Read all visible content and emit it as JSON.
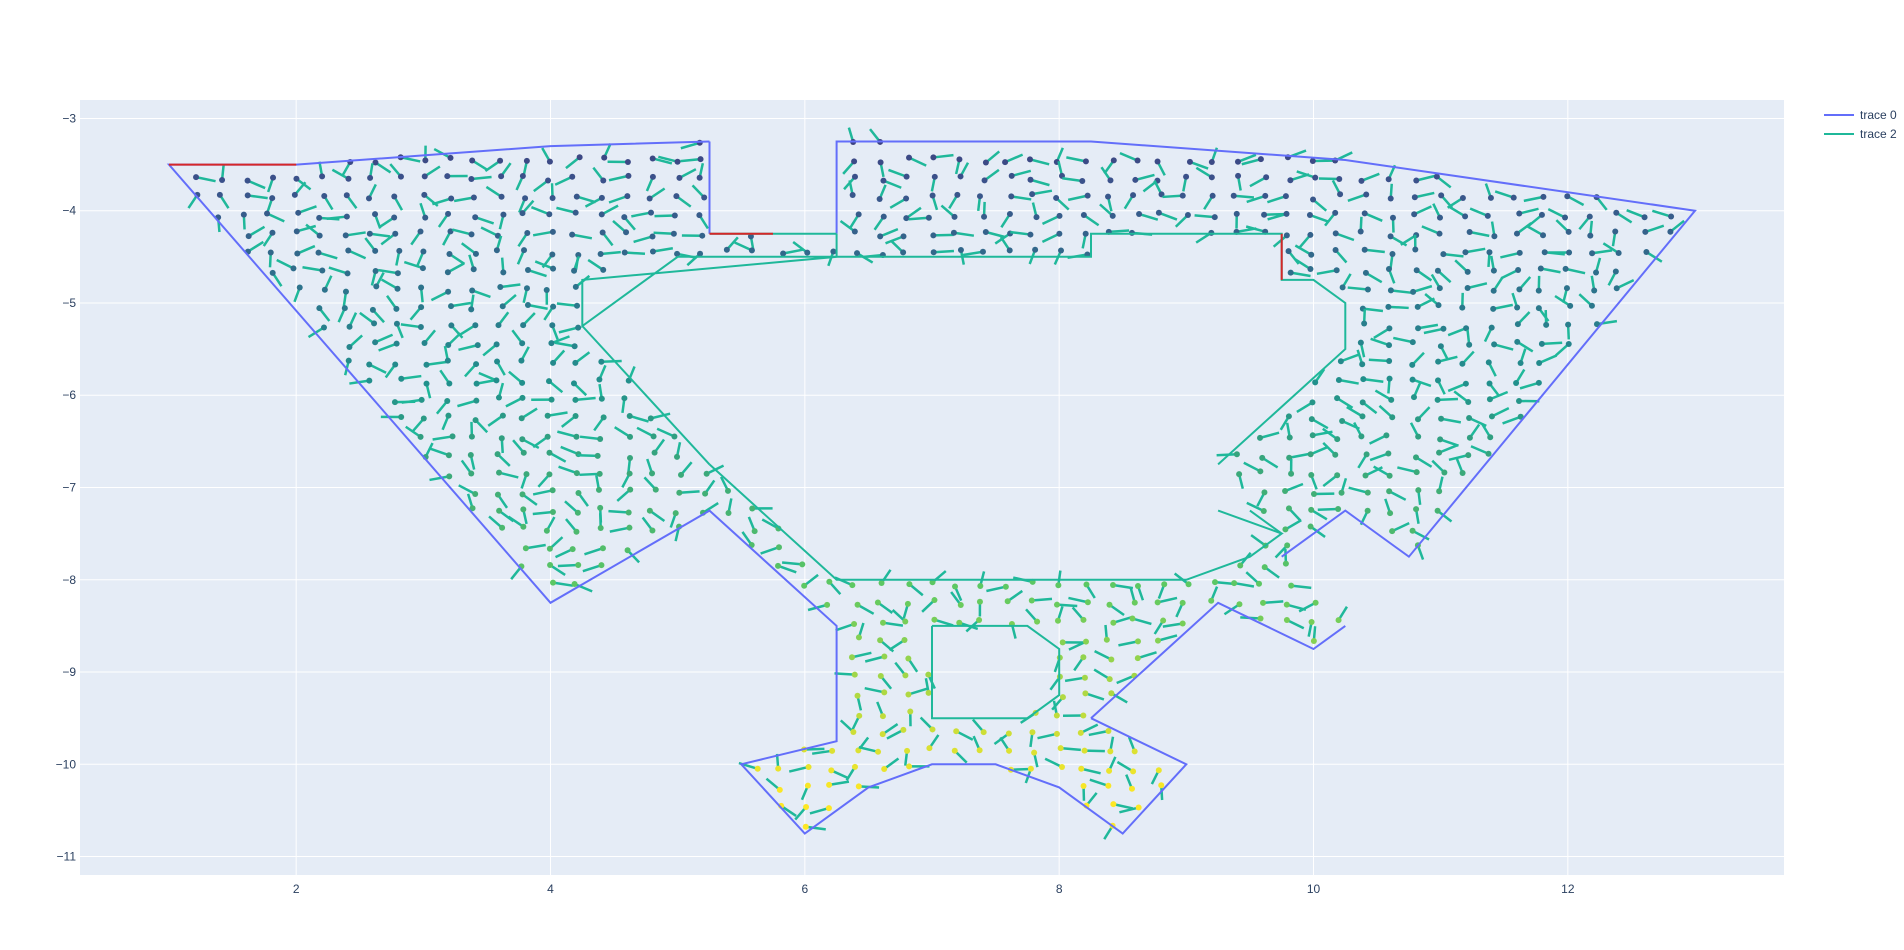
{
  "chart_data": {
    "type": "line",
    "title": "",
    "xlabel": "",
    "ylabel": "",
    "xlim": [
      0.3,
      13.7
    ],
    "ylim": [
      -11.2,
      -2.8
    ],
    "x_ticks": [
      2,
      4,
      6,
      8,
      10,
      12
    ],
    "y_ticks": [
      -3,
      -4,
      -5,
      -6,
      -7,
      -8,
      -9,
      -10,
      -11
    ],
    "grid": true,
    "legend_position": "top-right",
    "colors": {
      "plot_bg": "#e5ecf6",
      "grid": "#ffffff",
      "trace0": "#636efa",
      "trace2": "#1fb89a",
      "highlight": "#d62728",
      "colorscale": [
        "#440154",
        "#3b528b",
        "#21918c",
        "#5ec962",
        "#fde725"
      ]
    },
    "series": [
      {
        "name": "trace 0",
        "color": "#636efa",
        "segments": [
          {
            "x": [
              5.25,
              5.25
            ],
            "y": [
              -3.25,
              -4.25
            ]
          },
          {
            "x": [
              6.25,
              6.25,
              8.25,
              10.25,
              13.0,
              10.75,
              10.25,
              9.75
            ],
            "y": [
              -4.25,
              -3.25,
              -3.25,
              -3.45,
              -4.0,
              -7.75,
              -7.25,
              -7.75
            ]
          },
          {
            "x": [
              10.25,
              10.0,
              9.25,
              8.25
            ],
            "y": [
              -8.5,
              -8.75,
              -8.25,
              -9.5
            ]
          },
          {
            "x": [
              8.25,
              9.0,
              8.5,
              8.0,
              7.5,
              7.0,
              6.5,
              6.0,
              5.5,
              6.25,
              6.25,
              5.25,
              4.0,
              1.0,
              2.0,
              3.0,
              4.0,
              5.25
            ],
            "y": [
              -9.5,
              -10.0,
              -10.75,
              -10.25,
              -10.0,
              -10.0,
              -10.25,
              -10.75,
              -10.0,
              -9.75,
              -8.5,
              -7.25,
              -8.25,
              -3.5,
              -3.5,
              -3.4,
              -3.3,
              -3.25
            ]
          }
        ]
      },
      {
        "name": "trace 2",
        "color": "#1fb89a",
        "segments": [
          {
            "x": [
              5.25,
              6.25
            ],
            "y": [
              -4.25,
              -4.25
            ]
          },
          {
            "x": [
              6.25,
              6.25,
              4.25,
              4.25,
              5.0,
              8.25,
              8.25,
              9.75,
              9.75,
              10.0,
              10.25,
              10.25,
              9.25
            ],
            "y": [
              -4.25,
              -4.5,
              -4.75,
              -5.25,
              -4.5,
              -4.5,
              -4.25,
              -4.25,
              -4.75,
              -4.75,
              -5.0,
              -5.5,
              -6.75
            ]
          },
          {
            "x": [
              9.5,
              9.75
            ],
            "y": [
              -7.25,
              -7.5
            ]
          },
          {
            "x": [
              9.25,
              9.75,
              9.5,
              9.0,
              6.25,
              5.25
            ],
            "y": [
              -7.25,
              -7.5,
              -7.75,
              -8.0,
              -8.0,
              -6.75
            ]
          },
          {
            "x": [
              7.0,
              7.75,
              8.0,
              8.0,
              7.75,
              7.0,
              7.0
            ],
            "y": [
              -8.5,
              -8.5,
              -8.75,
              -9.25,
              -9.5,
              -9.5,
              -8.5
            ]
          },
          {
            "x": [
              5.25,
              4.25
            ],
            "y": [
              -6.75,
              -5.25
            ]
          }
        ]
      },
      {
        "name": "",
        "color": "#d62728",
        "segments": [
          {
            "x": [
              1.0,
              2.0
            ],
            "y": [
              -3.5,
              -3.5
            ]
          },
          {
            "x": [
              5.25,
              5.75
            ],
            "y": [
              -4.25,
              -4.25
            ]
          },
          {
            "x": [
              9.75,
              9.75
            ],
            "y": [
              -4.25,
              -4.75
            ]
          }
        ]
      }
    ],
    "quiver": {
      "x_range": [
        1.0,
        13.0
      ],
      "y_range": [
        -10.75,
        -3.25
      ],
      "spacing": 0.2,
      "arrow_length": 0.16,
      "color_by_y": true
    }
  },
  "legend": {
    "items": [
      {
        "label": "trace 0",
        "color": "#636efa"
      },
      {
        "label": "trace 2",
        "color": "#1fb89a"
      }
    ]
  }
}
